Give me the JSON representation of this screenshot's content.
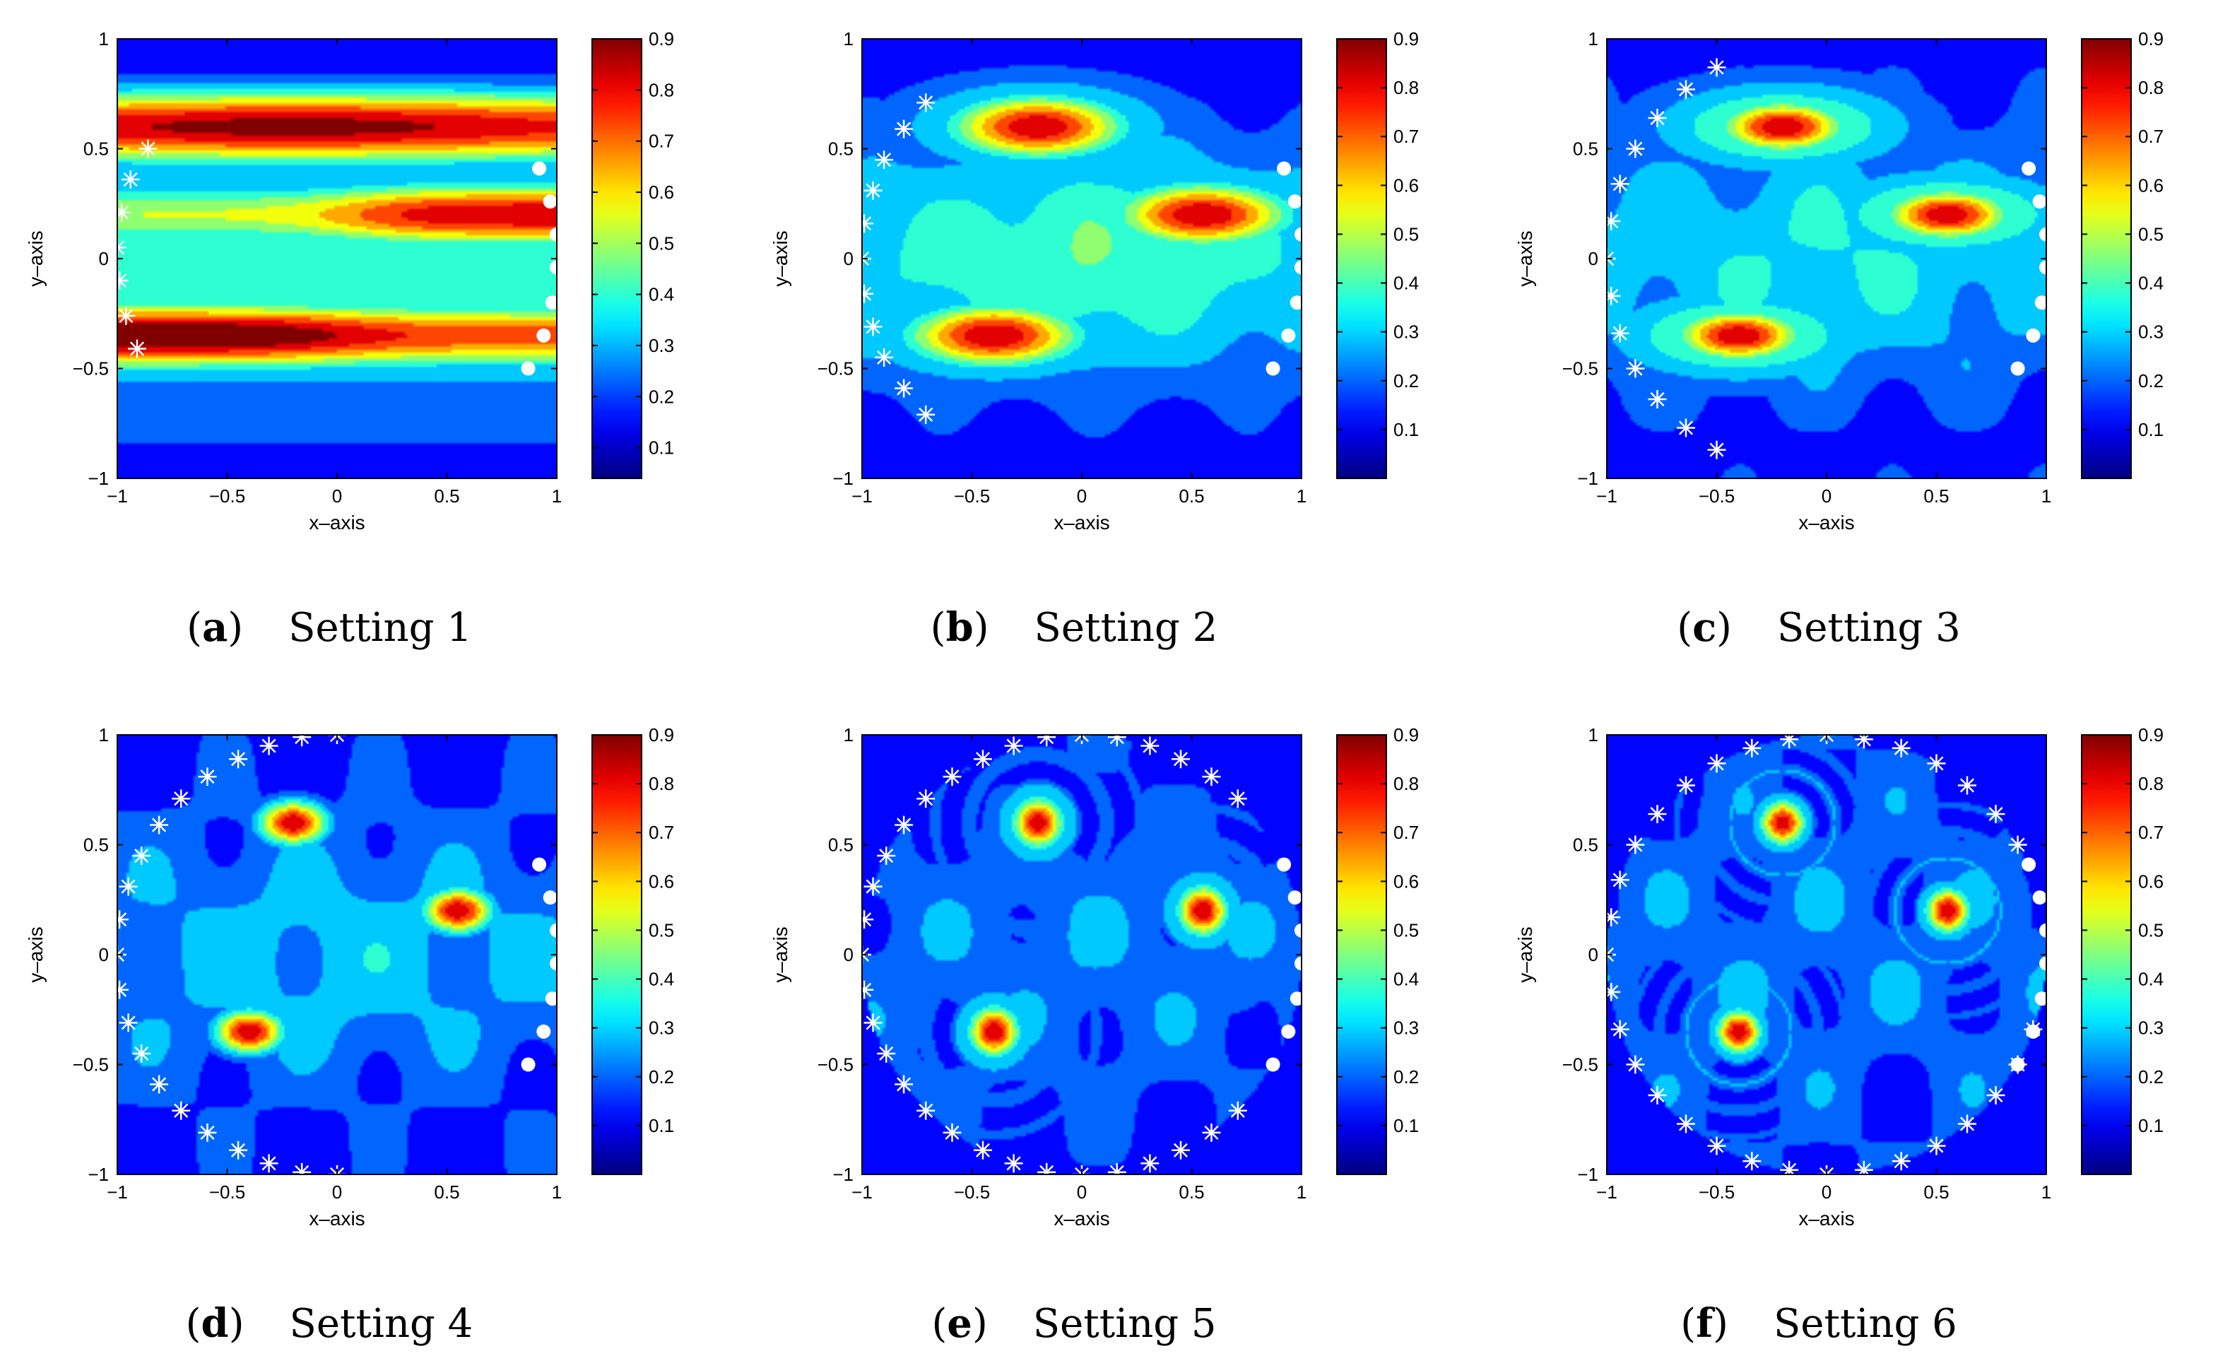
{
  "figure": {
    "colormap": "jet",
    "colors": {
      "jet_dark_blue": "#00008f",
      "jet_blue": "#0000ff",
      "jet_cyan": "#00ffff",
      "jet_yellow": "#ffff00",
      "jet_red": "#ff0000",
      "jet_dark_red": "#800000",
      "marker_color": "#ffffff"
    }
  },
  "chart_data": [
    {
      "type": "heatmap",
      "subplot_letter": "a",
      "caption": "Setting 1",
      "xlabel": "x–axis",
      "ylabel": "y–axis",
      "xlim": [
        -1,
        1
      ],
      "ylim": [
        -1,
        1
      ],
      "x_ticks": [
        "−1",
        "−0.5",
        "0",
        "0.5",
        "1"
      ],
      "y_ticks": [
        "1",
        "0.5",
        "0",
        "−0.5",
        "−1"
      ],
      "colorbar_ticks": [
        "0.9",
        "0.8",
        "0.7",
        "0.6",
        "0.5",
        "0.4",
        "0.3",
        "0.2",
        "0.1"
      ],
      "colorbar_range": [
        0.04,
        0.9
      ],
      "sources": [
        {
          "x": -0.2,
          "y": 0.6
        },
        {
          "x": 0.55,
          "y": 0.2
        },
        {
          "x": -0.4,
          "y": -0.35
        }
      ],
      "field_style": "bands",
      "band_peaks_y": [
        0.6,
        0.2,
        -0.35
      ],
      "emitters_star": [
        {
          "x": -0.86,
          "y": 0.5
        },
        {
          "x": -0.94,
          "y": 0.36
        },
        {
          "x": -0.98,
          "y": 0.21
        },
        {
          "x": -1.0,
          "y": 0.05
        },
        {
          "x": -0.99,
          "y": -0.1
        },
        {
          "x": -0.96,
          "y": -0.26
        },
        {
          "x": -0.91,
          "y": -0.41
        }
      ],
      "receivers_dot": [
        {
          "x": 0.92,
          "y": 0.41
        },
        {
          "x": 0.97,
          "y": 0.26
        },
        {
          "x": 1.0,
          "y": 0.11
        },
        {
          "x": 1.0,
          "y": -0.04
        },
        {
          "x": 0.98,
          "y": -0.2
        },
        {
          "x": 0.94,
          "y": -0.35
        },
        {
          "x": 0.87,
          "y": -0.5
        }
      ]
    },
    {
      "type": "heatmap",
      "subplot_letter": "b",
      "caption": "Setting 2",
      "xlabel": "x–axis",
      "ylabel": "y–axis",
      "xlim": [
        -1,
        1
      ],
      "ylim": [
        -1,
        1
      ],
      "x_ticks": [
        "−1",
        "−0.5",
        "0",
        "0.5",
        "1"
      ],
      "y_ticks": [
        "1",
        "0.5",
        "0",
        "−0.5",
        "−1"
      ],
      "colorbar_ticks": [
        "0.9",
        "0.8",
        "0.7",
        "0.6",
        "0.5",
        "0.4",
        "0.3",
        "0.2",
        "0.1"
      ],
      "colorbar_range": [
        0.0,
        0.9
      ],
      "sources": [
        {
          "x": -0.2,
          "y": 0.6
        },
        {
          "x": 0.55,
          "y": 0.2
        },
        {
          "x": -0.4,
          "y": -0.35
        }
      ],
      "field_style": "elongated",
      "emitters_star": [
        {
          "x": -0.71,
          "y": 0.71
        },
        {
          "x": -0.81,
          "y": 0.59
        },
        {
          "x": -0.9,
          "y": 0.45
        },
        {
          "x": -0.95,
          "y": 0.31
        },
        {
          "x": -0.99,
          "y": 0.16
        },
        {
          "x": -1.0,
          "y": 0.0
        },
        {
          "x": -0.99,
          "y": -0.16
        },
        {
          "x": -0.95,
          "y": -0.31
        },
        {
          "x": -0.9,
          "y": -0.45
        },
        {
          "x": -0.81,
          "y": -0.59
        },
        {
          "x": -0.71,
          "y": -0.71
        }
      ],
      "receivers_dot": [
        {
          "x": 0.92,
          "y": 0.41
        },
        {
          "x": 0.97,
          "y": 0.26
        },
        {
          "x": 1.0,
          "y": 0.11
        },
        {
          "x": 1.0,
          "y": -0.04
        },
        {
          "x": 0.98,
          "y": -0.2
        },
        {
          "x": 0.94,
          "y": -0.35
        },
        {
          "x": 0.87,
          "y": -0.5
        }
      ]
    },
    {
      "type": "heatmap",
      "subplot_letter": "c",
      "caption": "Setting 3",
      "xlabel": "x–axis",
      "ylabel": "y–axis",
      "xlim": [
        -1,
        1
      ],
      "ylim": [
        -1,
        1
      ],
      "x_ticks": [
        "−1",
        "−0.5",
        "0",
        "0.5",
        "1"
      ],
      "y_ticks": [
        "1",
        "0.5",
        "0",
        "−0.5",
        "−1"
      ],
      "colorbar_ticks": [
        "0.9",
        "0.8",
        "0.7",
        "0.6",
        "0.5",
        "0.4",
        "0.3",
        "0.2",
        "0.1"
      ],
      "colorbar_range": [
        0.0,
        0.9
      ],
      "sources": [
        {
          "x": -0.2,
          "y": 0.6
        },
        {
          "x": 0.55,
          "y": 0.2
        },
        {
          "x": -0.4,
          "y": -0.35
        }
      ],
      "field_style": "ripple-weak",
      "emitters_star": [
        {
          "x": -0.5,
          "y": 0.87
        },
        {
          "x": -0.64,
          "y": 0.77
        },
        {
          "x": -0.77,
          "y": 0.64
        },
        {
          "x": -0.87,
          "y": 0.5
        },
        {
          "x": -0.94,
          "y": 0.34
        },
        {
          "x": -0.98,
          "y": 0.17
        },
        {
          "x": -1.0,
          "y": 0.0
        },
        {
          "x": -0.98,
          "y": -0.17
        },
        {
          "x": -0.94,
          "y": -0.34
        },
        {
          "x": -0.87,
          "y": -0.5
        },
        {
          "x": -0.77,
          "y": -0.64
        },
        {
          "x": -0.64,
          "y": -0.77
        },
        {
          "x": -0.5,
          "y": -0.87
        }
      ],
      "receivers_dot": [
        {
          "x": 0.92,
          "y": 0.41
        },
        {
          "x": 0.97,
          "y": 0.26
        },
        {
          "x": 1.0,
          "y": 0.11
        },
        {
          "x": 1.0,
          "y": -0.04
        },
        {
          "x": 0.98,
          "y": -0.2
        },
        {
          "x": 0.94,
          "y": -0.35
        },
        {
          "x": 0.87,
          "y": -0.5
        }
      ]
    },
    {
      "type": "heatmap",
      "subplot_letter": "d",
      "caption": "Setting 4",
      "xlabel": "x–axis",
      "ylabel": "y–axis",
      "xlim": [
        -1,
        1
      ],
      "ylim": [
        -1,
        1
      ],
      "x_ticks": [
        "−1",
        "−0.5",
        "0",
        "0.5",
        "1"
      ],
      "y_ticks": [
        "1",
        "0.5",
        "0",
        "−0.5",
        "−1"
      ],
      "colorbar_ticks": [
        "0.9",
        "0.8",
        "0.7",
        "0.6",
        "0.5",
        "0.4",
        "0.3",
        "0.2",
        "0.1"
      ],
      "colorbar_range": [
        0.0,
        0.9
      ],
      "sources": [
        {
          "x": -0.2,
          "y": 0.6
        },
        {
          "x": 0.55,
          "y": 0.2
        },
        {
          "x": -0.4,
          "y": -0.35
        }
      ],
      "field_style": "speckle",
      "emitters_star": [
        {
          "x": 0.0,
          "y": 1.0
        },
        {
          "x": -0.16,
          "y": 0.99
        },
        {
          "x": -0.31,
          "y": 0.95
        },
        {
          "x": -0.45,
          "y": 0.89
        },
        {
          "x": -0.59,
          "y": 0.81
        },
        {
          "x": -0.71,
          "y": 0.71
        },
        {
          "x": -0.81,
          "y": 0.59
        },
        {
          "x": -0.89,
          "y": 0.45
        },
        {
          "x": -0.95,
          "y": 0.31
        },
        {
          "x": -0.99,
          "y": 0.16
        },
        {
          "x": -1.0,
          "y": 0.0
        },
        {
          "x": -0.99,
          "y": -0.16
        },
        {
          "x": -0.95,
          "y": -0.31
        },
        {
          "x": -0.89,
          "y": -0.45
        },
        {
          "x": -0.81,
          "y": -0.59
        },
        {
          "x": -0.71,
          "y": -0.71
        },
        {
          "x": -0.59,
          "y": -0.81
        },
        {
          "x": -0.45,
          "y": -0.89
        },
        {
          "x": -0.31,
          "y": -0.95
        },
        {
          "x": -0.16,
          "y": -0.99
        },
        {
          "x": 0.0,
          "y": -1.0
        }
      ],
      "receivers_dot": [
        {
          "x": 0.92,
          "y": 0.41
        },
        {
          "x": 0.97,
          "y": 0.26
        },
        {
          "x": 1.0,
          "y": 0.11
        },
        {
          "x": 1.0,
          "y": -0.04
        },
        {
          "x": 0.98,
          "y": -0.2
        },
        {
          "x": 0.94,
          "y": -0.35
        },
        {
          "x": 0.87,
          "y": -0.5
        }
      ]
    },
    {
      "type": "heatmap",
      "subplot_letter": "e",
      "caption": "Setting 5",
      "xlabel": "x–axis",
      "ylabel": "y–axis",
      "xlim": [
        -1,
        1
      ],
      "ylim": [
        -1,
        1
      ],
      "x_ticks": [
        "−1",
        "−0.5",
        "0",
        "0.5",
        "1"
      ],
      "y_ticks": [
        "1",
        "0.5",
        "0",
        "−0.5",
        "−1"
      ],
      "colorbar_ticks": [
        "0.9",
        "0.8",
        "0.7",
        "0.6",
        "0.5",
        "0.4",
        "0.3",
        "0.2",
        "0.1"
      ],
      "colorbar_range": [
        0.0,
        0.9
      ],
      "sources": [
        {
          "x": -0.2,
          "y": 0.6
        },
        {
          "x": 0.55,
          "y": 0.2
        },
        {
          "x": -0.4,
          "y": -0.35
        }
      ],
      "field_style": "ring",
      "emitters_star": [
        {
          "x": 0.71,
          "y": 0.71
        },
        {
          "x": 0.59,
          "y": 0.81
        },
        {
          "x": 0.45,
          "y": 0.89
        },
        {
          "x": 0.31,
          "y": 0.95
        },
        {
          "x": 0.16,
          "y": 0.99
        },
        {
          "x": 0.0,
          "y": 1.0
        },
        {
          "x": -0.16,
          "y": 0.99
        },
        {
          "x": -0.31,
          "y": 0.95
        },
        {
          "x": -0.45,
          "y": 0.89
        },
        {
          "x": -0.59,
          "y": 0.81
        },
        {
          "x": -0.71,
          "y": 0.71
        },
        {
          "x": -0.81,
          "y": 0.59
        },
        {
          "x": -0.89,
          "y": 0.45
        },
        {
          "x": -0.95,
          "y": 0.31
        },
        {
          "x": -0.99,
          "y": 0.16
        },
        {
          "x": -1.0,
          "y": 0.0
        },
        {
          "x": -0.99,
          "y": -0.16
        },
        {
          "x": -0.95,
          "y": -0.31
        },
        {
          "x": -0.89,
          "y": -0.45
        },
        {
          "x": -0.81,
          "y": -0.59
        },
        {
          "x": -0.71,
          "y": -0.71
        },
        {
          "x": -0.59,
          "y": -0.81
        },
        {
          "x": -0.45,
          "y": -0.89
        },
        {
          "x": -0.31,
          "y": -0.95
        },
        {
          "x": -0.16,
          "y": -0.99
        },
        {
          "x": 0.0,
          "y": -1.0
        },
        {
          "x": 0.16,
          "y": -0.99
        },
        {
          "x": 0.31,
          "y": -0.95
        },
        {
          "x": 0.45,
          "y": -0.89
        },
        {
          "x": 0.59,
          "y": -0.81
        },
        {
          "x": 0.71,
          "y": -0.71
        }
      ],
      "receivers_dot": [
        {
          "x": 0.92,
          "y": 0.41
        },
        {
          "x": 0.97,
          "y": 0.26
        },
        {
          "x": 1.0,
          "y": 0.11
        },
        {
          "x": 1.0,
          "y": -0.04
        },
        {
          "x": 0.98,
          "y": -0.2
        },
        {
          "x": 0.94,
          "y": -0.35
        },
        {
          "x": 0.87,
          "y": -0.5
        }
      ]
    },
    {
      "type": "heatmap",
      "subplot_letter": "f",
      "caption": "Setting 6",
      "xlabel": "x–axis",
      "ylabel": "y–axis",
      "xlim": [
        -1,
        1
      ],
      "ylim": [
        -1,
        1
      ],
      "x_ticks": [
        "−1",
        "−0.5",
        "0",
        "0.5",
        "1"
      ],
      "y_ticks": [
        "1",
        "0.5",
        "0",
        "−0.5",
        "−1"
      ],
      "colorbar_ticks": [
        "0.9",
        "0.8",
        "0.7",
        "0.6",
        "0.5",
        "0.4",
        "0.3",
        "0.2",
        "0.1"
      ],
      "colorbar_range": [
        0.0,
        0.9
      ],
      "sources": [
        {
          "x": -0.2,
          "y": 0.6
        },
        {
          "x": 0.55,
          "y": 0.2
        },
        {
          "x": -0.4,
          "y": -0.35
        }
      ],
      "field_style": "ring-strong",
      "emitters_star": [
        {
          "x": 0.87,
          "y": 0.5
        },
        {
          "x": 0.77,
          "y": 0.64
        },
        {
          "x": 0.64,
          "y": 0.77
        },
        {
          "x": 0.5,
          "y": 0.87
        },
        {
          "x": 0.34,
          "y": 0.94
        },
        {
          "x": 0.17,
          "y": 0.98
        },
        {
          "x": 0.0,
          "y": 1.0
        },
        {
          "x": -0.17,
          "y": 0.98
        },
        {
          "x": -0.34,
          "y": 0.94
        },
        {
          "x": -0.5,
          "y": 0.87
        },
        {
          "x": -0.64,
          "y": 0.77
        },
        {
          "x": -0.77,
          "y": 0.64
        },
        {
          "x": -0.87,
          "y": 0.5
        },
        {
          "x": -0.94,
          "y": 0.34
        },
        {
          "x": -0.98,
          "y": 0.17
        },
        {
          "x": -1.0,
          "y": 0.0
        },
        {
          "x": -0.98,
          "y": -0.17
        },
        {
          "x": -0.94,
          "y": -0.34
        },
        {
          "x": -0.87,
          "y": -0.5
        },
        {
          "x": -0.77,
          "y": -0.64
        },
        {
          "x": -0.64,
          "y": -0.77
        },
        {
          "x": -0.5,
          "y": -0.87
        },
        {
          "x": -0.34,
          "y": -0.94
        },
        {
          "x": -0.17,
          "y": -0.98
        },
        {
          "x": 0.0,
          "y": -1.0
        },
        {
          "x": 0.17,
          "y": -0.98
        },
        {
          "x": 0.34,
          "y": -0.94
        },
        {
          "x": 0.5,
          "y": -0.87
        },
        {
          "x": 0.64,
          "y": -0.77
        },
        {
          "x": 0.77,
          "y": -0.64
        },
        {
          "x": 0.87,
          "y": -0.5
        },
        {
          "x": 0.94,
          "y": -0.34
        }
      ],
      "receivers_dot": [
        {
          "x": 0.92,
          "y": 0.41
        },
        {
          "x": 0.97,
          "y": 0.26
        },
        {
          "x": 1.0,
          "y": 0.11
        },
        {
          "x": 1.0,
          "y": -0.04
        },
        {
          "x": 0.98,
          "y": -0.2
        },
        {
          "x": 0.94,
          "y": -0.35
        },
        {
          "x": 0.87,
          "y": -0.5
        }
      ]
    }
  ]
}
